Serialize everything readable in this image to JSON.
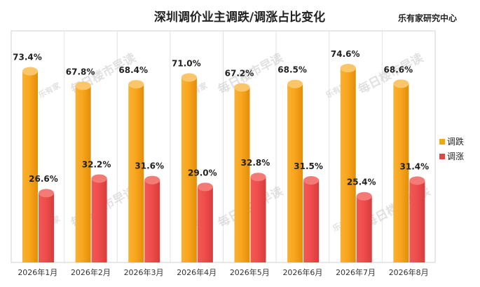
{
  "chart_data": {
    "type": "bar",
    "title": "深圳调价业主调跌/调涨占比变化",
    "source": "乐有家研究中心",
    "watermark": "每日楼市早读",
    "watermark_logo": "乐有家",
    "categories": [
      "2026年1月",
      "2026年2月",
      "2026年3月",
      "2026年4月",
      "2026年5月",
      "2026年6月",
      "2026年7月",
      "2026年8月"
    ],
    "series": [
      {
        "name": "调跌",
        "color": "#F5A316",
        "values": [
          73.4,
          67.8,
          68.4,
          71.0,
          67.2,
          68.5,
          74.6,
          68.6
        ],
        "labels": [
          "73.4%",
          "67.8%",
          "68.4%",
          "71.0%",
          "67.2%",
          "68.5%",
          "74.6%",
          "68.6%"
        ]
      },
      {
        "name": "调涨",
        "color": "#E64545",
        "values": [
          26.6,
          32.2,
          31.6,
          29.0,
          32.8,
          31.5,
          25.4,
          31.4
        ],
        "labels": [
          "26.6%",
          "32.2%",
          "31.6%",
          "29.0%",
          "32.8%",
          "31.5%",
          "25.4%",
          "31.4%"
        ]
      }
    ],
    "legend_position": "right",
    "ylim": [
      0,
      80
    ],
    "grid": false
  }
}
